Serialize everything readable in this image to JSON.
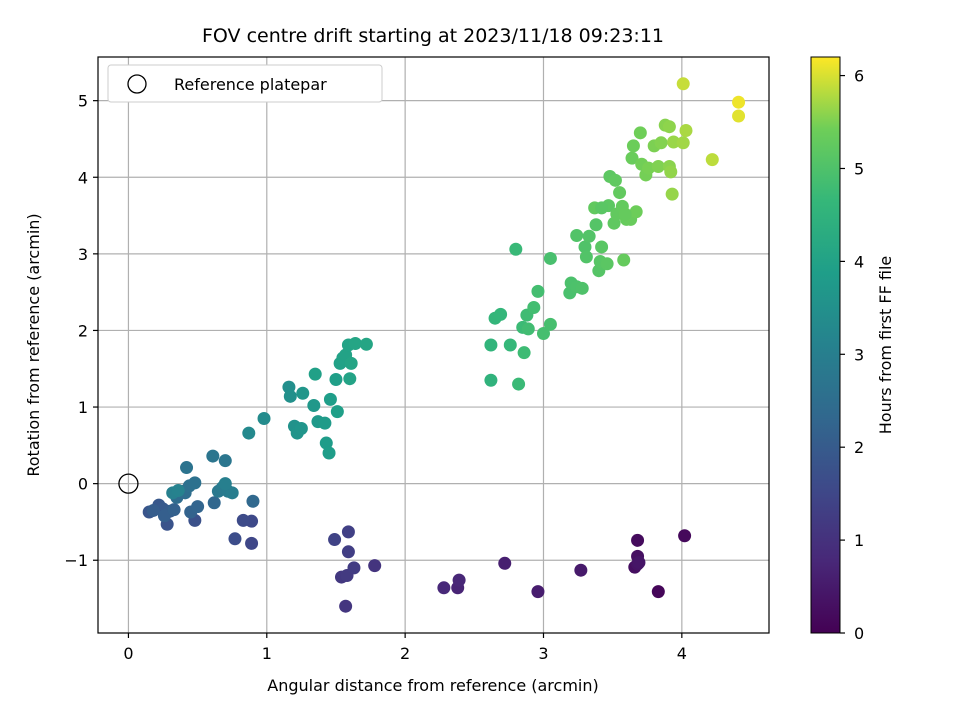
{
  "chart_data": {
    "type": "scatter",
    "title": "FOV centre drift starting at 2023/11/18 09:23:11",
    "xlabel": "Angular distance from reference (arcmin)",
    "ylabel": "Rotation from reference (arcmin)",
    "colorbar_label": "Hours from first FF file",
    "xlim": [
      -0.22,
      4.63
    ],
    "ylim": [
      -1.95,
      5.57
    ],
    "clim": [
      0,
      6.2
    ],
    "x_ticks": [
      0,
      1,
      2,
      3,
      4
    ],
    "y_ticks": [
      -1,
      0,
      1,
      2,
      3,
      4,
      5
    ],
    "colorbar_ticks": [
      0,
      1,
      2,
      3,
      4,
      5,
      6
    ],
    "x_tick_labels": [
      "0",
      "1",
      "2",
      "3",
      "4"
    ],
    "y_tick_labels": [
      "−1",
      "0",
      "1",
      "2",
      "3",
      "4",
      "5"
    ],
    "colorbar_tick_labels": [
      "0",
      "1",
      "2",
      "3",
      "4",
      "5",
      "6"
    ],
    "grid": true,
    "legend_position": "top-left",
    "colormap": "viridis",
    "reference": {
      "name": "Reference platepar",
      "x": 0,
      "y": 0
    },
    "points": [
      [
        3.83,
        -1.41,
        0.1
      ],
      [
        4.02,
        -0.68,
        0.15
      ],
      [
        3.68,
        -0.74,
        0.2
      ],
      [
        3.66,
        -1.09,
        0.25
      ],
      [
        3.68,
        -0.95,
        0.3
      ],
      [
        3.68,
        -1.05,
        0.35
      ],
      [
        3.69,
        -1.03,
        0.4
      ],
      [
        3.27,
        -1.13,
        0.5
      ],
      [
        2.96,
        -1.41,
        0.55
      ],
      [
        2.72,
        -1.04,
        0.6
      ],
      [
        2.38,
        -1.36,
        0.7
      ],
      [
        2.39,
        -1.26,
        0.75
      ],
      [
        2.28,
        -1.36,
        0.8
      ],
      [
        1.78,
        -1.07,
        1.05
      ],
      [
        1.57,
        -1.6,
        1.1
      ],
      [
        1.54,
        -1.22,
        1.15
      ],
      [
        1.58,
        -1.2,
        1.2
      ],
      [
        1.63,
        -1.1,
        1.25
      ],
      [
        1.59,
        -0.89,
        1.3
      ],
      [
        1.59,
        -0.63,
        1.35
      ],
      [
        1.49,
        -0.73,
        1.4
      ],
      [
        0.89,
        -0.78,
        1.5
      ],
      [
        0.89,
        -0.49,
        1.55
      ],
      [
        0.83,
        -0.48,
        1.6
      ],
      [
        0.77,
        -0.72,
        1.65
      ],
      [
        0.48,
        -0.48,
        1.75
      ],
      [
        0.28,
        -0.53,
        1.8
      ],
      [
        0.15,
        -0.37,
        1.85
      ],
      [
        0.22,
        -0.28,
        1.9
      ],
      [
        0.25,
        -0.33,
        1.95
      ],
      [
        0.3,
        -0.36,
        2.0
      ],
      [
        0.18,
        -0.35,
        2.05
      ],
      [
        0.26,
        -0.42,
        2.1
      ],
      [
        0.33,
        -0.34,
        2.15
      ],
      [
        0.45,
        -0.37,
        2.2
      ],
      [
        0.5,
        -0.3,
        2.25
      ],
      [
        0.62,
        -0.25,
        2.3
      ],
      [
        0.9,
        -0.23,
        2.35
      ],
      [
        0.4,
        -0.1,
        2.4
      ],
      [
        0.35,
        -0.18,
        2.45
      ],
      [
        0.41,
        -0.12,
        2.5
      ],
      [
        0.44,
        -0.03,
        2.55
      ],
      [
        0.48,
        0.01,
        2.6
      ],
      [
        0.42,
        0.21,
        2.65
      ],
      [
        0.61,
        0.36,
        2.7
      ],
      [
        0.7,
        0.3,
        2.75
      ],
      [
        0.65,
        -0.1,
        2.8
      ],
      [
        0.68,
        -0.05,
        2.85
      ],
      [
        0.72,
        -0.1,
        2.9
      ],
      [
        0.75,
        -0.12,
        2.95
      ],
      [
        0.7,
        0.0,
        3.0
      ],
      [
        0.32,
        -0.12,
        3.05
      ],
      [
        0.36,
        -0.09,
        3.1
      ],
      [
        0.87,
        0.66,
        3.3
      ],
      [
        0.98,
        0.85,
        3.35
      ],
      [
        1.16,
        1.26,
        3.45
      ],
      [
        1.17,
        1.14,
        3.5
      ],
      [
        1.2,
        0.75,
        3.55
      ],
      [
        1.22,
        0.66,
        3.6
      ],
      [
        1.25,
        0.72,
        3.62
      ],
      [
        1.26,
        1.18,
        3.65
      ],
      [
        1.34,
        1.02,
        3.7
      ],
      [
        1.37,
        0.81,
        3.75
      ],
      [
        1.42,
        0.79,
        3.8
      ],
      [
        1.43,
        0.53,
        3.82
      ],
      [
        1.45,
        0.4,
        3.85
      ],
      [
        1.46,
        1.1,
        3.88
      ],
      [
        1.5,
        1.36,
        3.9
      ],
      [
        1.51,
        0.94,
        3.92
      ],
      [
        1.35,
        1.43,
        3.95
      ],
      [
        1.53,
        1.57,
        3.97
      ],
      [
        1.55,
        1.64,
        3.99
      ],
      [
        1.57,
        1.68,
        4.0
      ],
      [
        1.59,
        1.81,
        4.02
      ],
      [
        1.6,
        1.37,
        4.04
      ],
      [
        1.61,
        1.57,
        4.06
      ],
      [
        1.64,
        1.83,
        4.08
      ],
      [
        1.72,
        1.82,
        4.1
      ],
      [
        2.62,
        1.35,
        4.5
      ],
      [
        2.62,
        1.81,
        4.55
      ],
      [
        2.65,
        2.16,
        4.6
      ],
      [
        2.69,
        2.21,
        4.62
      ],
      [
        2.76,
        1.81,
        4.65
      ],
      [
        2.8,
        3.06,
        4.7
      ],
      [
        2.82,
        1.3,
        4.72
      ],
      [
        2.85,
        2.04,
        4.75
      ],
      [
        2.86,
        1.71,
        4.77
      ],
      [
        2.88,
        2.2,
        4.8
      ],
      [
        2.89,
        2.02,
        4.82
      ],
      [
        2.93,
        2.3,
        4.84
      ],
      [
        2.96,
        2.51,
        4.86
      ],
      [
        3.0,
        1.96,
        4.88
      ],
      [
        3.05,
        2.08,
        4.9
      ],
      [
        3.05,
        2.94,
        4.92
      ],
      [
        3.19,
        2.49,
        4.94
      ],
      [
        3.2,
        2.62,
        4.96
      ],
      [
        3.24,
        2.57,
        4.98
      ],
      [
        3.28,
        2.55,
        5.0
      ],
      [
        3.3,
        3.09,
        5.02
      ],
      [
        3.31,
        2.96,
        5.04
      ],
      [
        3.33,
        3.23,
        5.06
      ],
      [
        3.38,
        3.38,
        5.08
      ],
      [
        3.4,
        2.78,
        5.1
      ],
      [
        3.41,
        2.9,
        5.12
      ],
      [
        3.42,
        3.09,
        5.14
      ],
      [
        3.46,
        2.87,
        5.16
      ],
      [
        3.47,
        3.63,
        5.18
      ],
      [
        3.48,
        4.01,
        5.2
      ],
      [
        3.51,
        3.4,
        5.22
      ],
      [
        3.52,
        3.96,
        5.24
      ],
      [
        3.53,
        3.52,
        5.26
      ],
      [
        3.57,
        3.62,
        5.28
      ],
      [
        3.58,
        2.92,
        5.3
      ],
      [
        3.6,
        3.45,
        5.32
      ],
      [
        3.63,
        3.45,
        5.34
      ],
      [
        3.64,
        4.25,
        5.36
      ],
      [
        3.65,
        4.41,
        5.38
      ],
      [
        3.67,
        3.55,
        5.4
      ],
      [
        3.7,
        4.58,
        5.42
      ],
      [
        3.71,
        4.17,
        5.44
      ],
      [
        3.74,
        4.03,
        5.46
      ],
      [
        3.76,
        4.12,
        5.48
      ],
      [
        3.8,
        4.41,
        5.5
      ],
      [
        3.83,
        4.14,
        5.52
      ],
      [
        3.85,
        4.45,
        5.54
      ],
      [
        3.88,
        4.68,
        5.56
      ],
      [
        3.91,
        4.14,
        5.58
      ],
      [
        3.91,
        4.66,
        5.6
      ],
      [
        3.92,
        4.07,
        5.62
      ],
      [
        3.93,
        3.78,
        5.64
      ],
      [
        3.94,
        4.46,
        5.66
      ],
      [
        4.01,
        4.45,
        5.7
      ],
      [
        4.03,
        4.61,
        5.75
      ],
      [
        4.01,
        5.22,
        5.9
      ],
      [
        4.22,
        4.23,
        5.85
      ],
      [
        4.41,
        4.8,
        6.05
      ],
      [
        4.41,
        4.98,
        6.12
      ],
      [
        3.37,
        3.6,
        5.25
      ],
      [
        3.55,
        3.8,
        5.27
      ],
      [
        3.24,
        3.24,
        5.05
      ],
      [
        3.42,
        3.6,
        5.15
      ],
      [
        3.59,
        3.52,
        5.3
      ]
    ]
  }
}
